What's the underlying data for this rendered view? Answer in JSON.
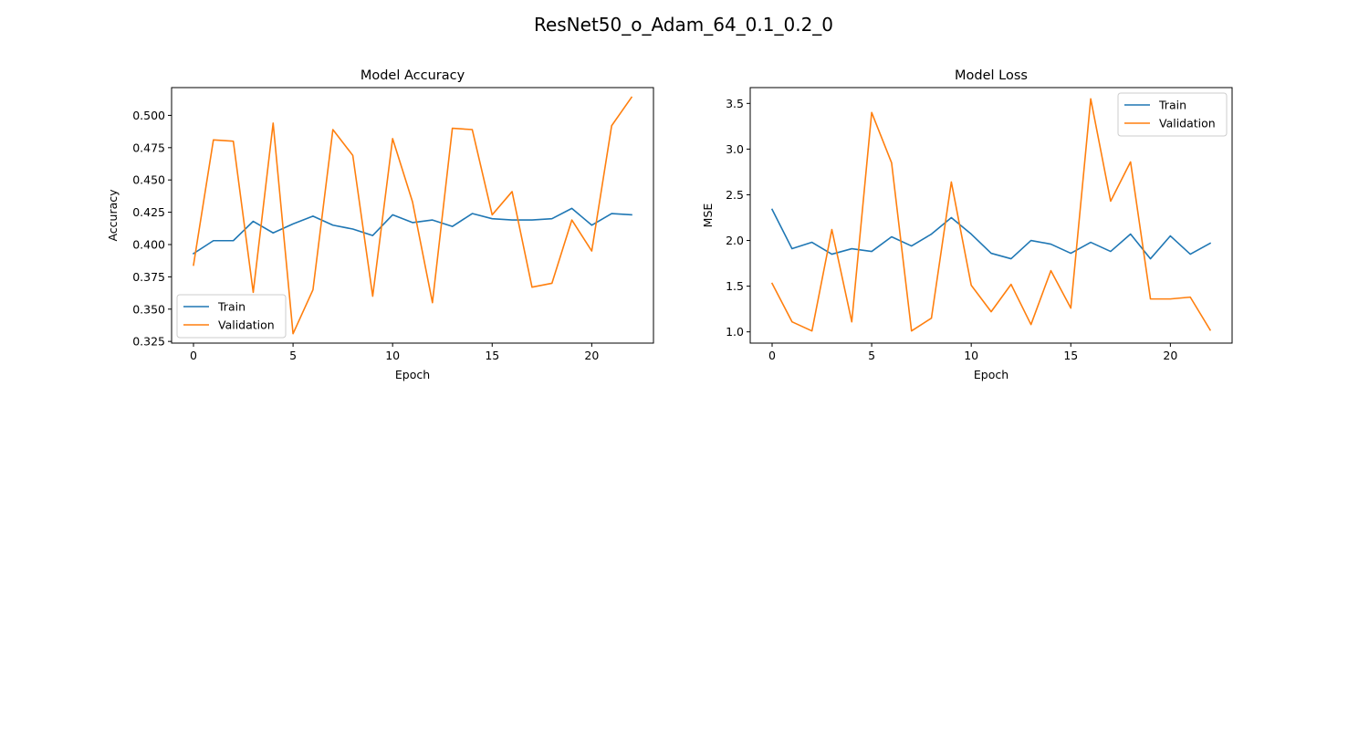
{
  "figure": {
    "suptitle": "ResNet50_o_Adam_64_0.1_0.2_0",
    "colors": {
      "train": "#1f77b4",
      "validation": "#ff7f0e",
      "axes": "#000000",
      "legend_border": "#cccccc"
    }
  },
  "chart_data": [
    {
      "type": "line",
      "title": "Model Accuracy",
      "xlabel": "Epoch",
      "ylabel": "Accuracy",
      "xlim": [
        -1.1,
        23.1
      ],
      "ylim": [
        0.3237,
        0.5215
      ],
      "xticks": [
        0,
        5,
        10,
        15,
        20
      ],
      "yticks": [
        0.325,
        0.35,
        0.375,
        0.4,
        0.425,
        0.45,
        0.475,
        0.5
      ],
      "ytick_labels": [
        "0.325",
        "0.350",
        "0.375",
        "0.400",
        "0.425",
        "0.450",
        "0.475",
        "0.500"
      ],
      "grid": false,
      "legend": "lower left",
      "x": [
        0,
        1,
        2,
        3,
        4,
        5,
        6,
        7,
        8,
        9,
        10,
        11,
        12,
        13,
        14,
        15,
        16,
        17,
        18,
        19,
        20,
        21,
        22
      ],
      "series": [
        {
          "name": "Train",
          "color": "#1f77b4",
          "values": [
            0.393,
            0.403,
            0.403,
            0.418,
            0.409,
            0.416,
            0.422,
            0.415,
            0.412,
            0.407,
            0.423,
            0.417,
            0.419,
            0.414,
            0.424,
            0.42,
            0.419,
            0.419,
            0.42,
            0.428,
            0.415,
            0.424,
            0.423
          ]
        },
        {
          "name": "Validation",
          "color": "#ff7f0e",
          "values": [
            0.384,
            0.481,
            0.48,
            0.363,
            0.494,
            0.331,
            0.365,
            0.489,
            0.469,
            0.36,
            0.482,
            0.433,
            0.355,
            0.49,
            0.489,
            0.423,
            0.441,
            0.367,
            0.37,
            0.419,
            0.395,
            0.492,
            0.514
          ]
        }
      ]
    },
    {
      "type": "line",
      "title": "Model Loss",
      "xlabel": "Epoch",
      "ylabel": "MSE",
      "xlim": [
        -1.1,
        23.1
      ],
      "ylim": [
        0.877,
        3.673
      ],
      "xticks": [
        0,
        5,
        10,
        15,
        20
      ],
      "yticks": [
        1.0,
        1.5,
        2.0,
        2.5,
        3.0,
        3.5
      ],
      "ytick_labels": [
        "1.0",
        "1.5",
        "2.0",
        "2.5",
        "3.0",
        "3.5"
      ],
      "grid": false,
      "legend": "upper right",
      "x": [
        0,
        1,
        2,
        3,
        4,
        5,
        6,
        7,
        8,
        9,
        10,
        11,
        12,
        13,
        14,
        15,
        16,
        17,
        18,
        19,
        20,
        21,
        22
      ],
      "series": [
        {
          "name": "Train",
          "color": "#1f77b4",
          "values": [
            2.34,
            1.91,
            1.98,
            1.85,
            1.91,
            1.88,
            2.04,
            1.94,
            2.07,
            2.25,
            2.07,
            1.86,
            1.8,
            2.0,
            1.96,
            1.86,
            1.98,
            1.88,
            2.07,
            1.8,
            2.05,
            1.85,
            1.97
          ]
        },
        {
          "name": "Validation",
          "color": "#ff7f0e",
          "values": [
            1.53,
            1.11,
            1.01,
            2.12,
            1.11,
            3.4,
            2.85,
            1.01,
            1.15,
            2.64,
            1.51,
            1.22,
            1.52,
            1.08,
            1.67,
            1.26,
            3.55,
            2.43,
            2.86,
            1.36,
            1.36,
            1.38,
            1.02
          ]
        }
      ]
    }
  ]
}
